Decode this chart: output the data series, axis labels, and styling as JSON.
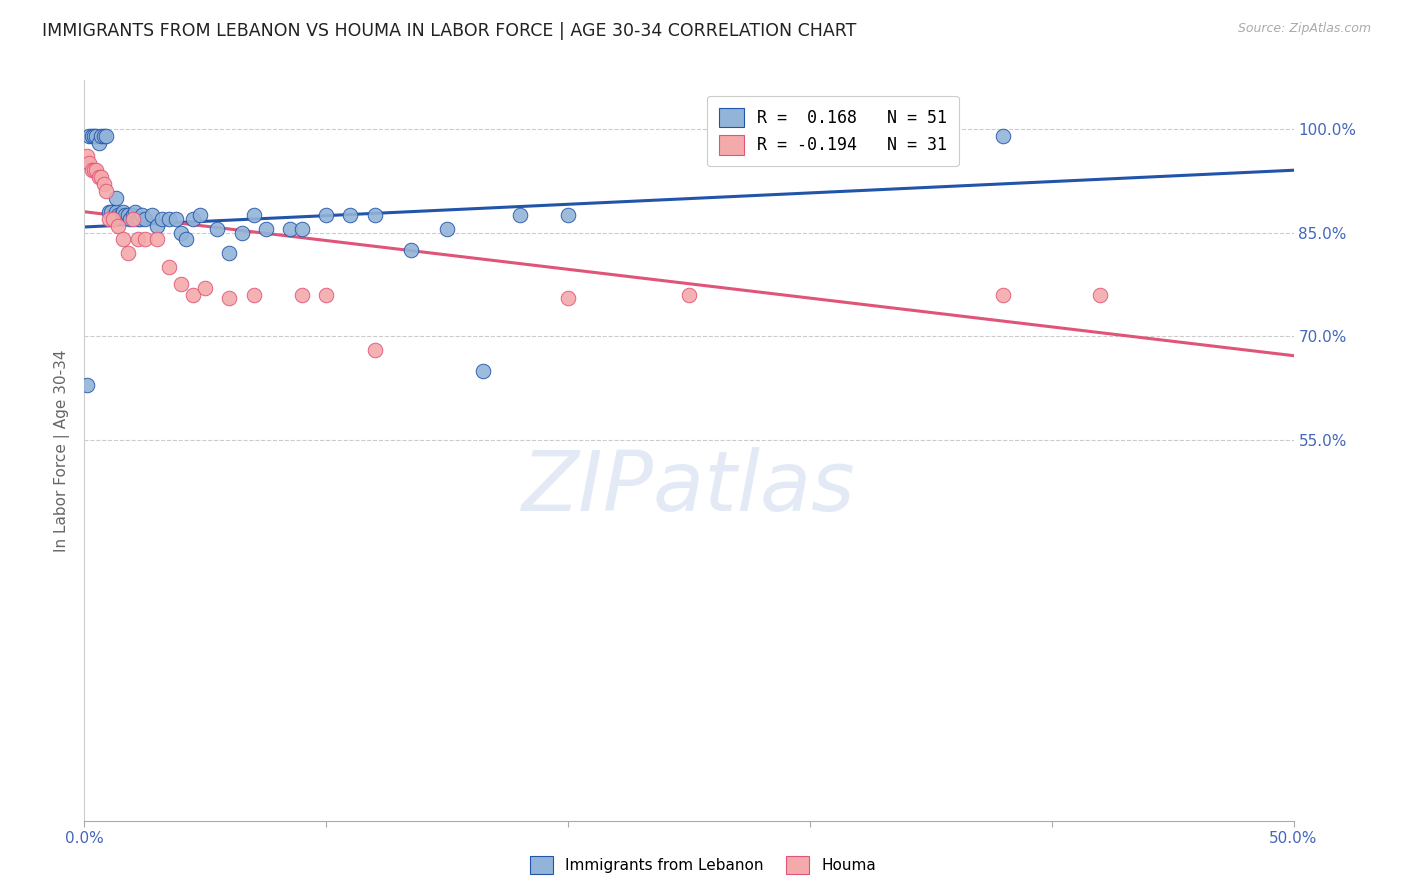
{
  "title": "IMMIGRANTS FROM LEBANON VS HOUMA IN LABOR FORCE | AGE 30-34 CORRELATION CHART",
  "source": "Source: ZipAtlas.com",
  "ylabel": "In Labor Force | Age 30-34",
  "xlim": [
    0.0,
    0.5
  ],
  "ylim": [
    0.0,
    1.07
  ],
  "ytick_positions": [
    0.55,
    0.7,
    0.85,
    1.0
  ],
  "ytick_labels": [
    "55.0%",
    "70.0%",
    "85.0%",
    "100.0%"
  ],
  "legend_blue_R": "0.168",
  "legend_blue_N": "51",
  "legend_pink_R": "-0.194",
  "legend_pink_N": "31",
  "legend_label_blue": "Immigrants from Lebanon",
  "legend_label_pink": "Houma",
  "color_blue": "#92B4D8",
  "color_pink": "#F4AAAA",
  "line_color_blue": "#2255AA",
  "line_color_pink": "#E05577",
  "watermark": "ZIPatlas",
  "title_fontsize": 12.5,
  "axis_label_color": "#4466BB",
  "blue_scatter_x": [
    0.001,
    0.002,
    0.003,
    0.004,
    0.005,
    0.006,
    0.007,
    0.008,
    0.009,
    0.01,
    0.011,
    0.012,
    0.013,
    0.013,
    0.014,
    0.015,
    0.016,
    0.017,
    0.018,
    0.019,
    0.02,
    0.021,
    0.022,
    0.023,
    0.024,
    0.025,
    0.028,
    0.03,
    0.032,
    0.035,
    0.038,
    0.04,
    0.042,
    0.045,
    0.048,
    0.055,
    0.06,
    0.065,
    0.07,
    0.075,
    0.085,
    0.09,
    0.1,
    0.11,
    0.12,
    0.135,
    0.15,
    0.165,
    0.18,
    0.2,
    0.38
  ],
  "blue_scatter_y": [
    0.63,
    0.99,
    0.99,
    0.99,
    0.99,
    0.98,
    0.99,
    0.99,
    0.99,
    0.88,
    0.88,
    0.87,
    0.88,
    0.9,
    0.875,
    0.875,
    0.88,
    0.875,
    0.875,
    0.87,
    0.875,
    0.88,
    0.87,
    0.87,
    0.875,
    0.87,
    0.875,
    0.86,
    0.87,
    0.87,
    0.87,
    0.85,
    0.84,
    0.87,
    0.875,
    0.855,
    0.82,
    0.85,
    0.875,
    0.855,
    0.855,
    0.855,
    0.875,
    0.875,
    0.875,
    0.825,
    0.855,
    0.65,
    0.875,
    0.875,
    0.99
  ],
  "pink_scatter_x": [
    0.001,
    0.002,
    0.003,
    0.004,
    0.005,
    0.006,
    0.007,
    0.008,
    0.009,
    0.01,
    0.012,
    0.014,
    0.016,
    0.018,
    0.02,
    0.022,
    0.025,
    0.03,
    0.035,
    0.04,
    0.045,
    0.05,
    0.06,
    0.07,
    0.09,
    0.1,
    0.12,
    0.2,
    0.25,
    0.38,
    0.42
  ],
  "pink_scatter_y": [
    0.96,
    0.95,
    0.94,
    0.94,
    0.94,
    0.93,
    0.93,
    0.92,
    0.91,
    0.87,
    0.87,
    0.86,
    0.84,
    0.82,
    0.87,
    0.84,
    0.84,
    0.84,
    0.8,
    0.775,
    0.76,
    0.77,
    0.755,
    0.76,
    0.76,
    0.76,
    0.68,
    0.755,
    0.76,
    0.76,
    0.76
  ],
  "blue_line_x": [
    0.0,
    0.5
  ],
  "blue_line_y": [
    0.858,
    0.94
  ],
  "pink_line_x": [
    0.0,
    0.5
  ],
  "pink_line_y": [
    0.88,
    0.672
  ]
}
